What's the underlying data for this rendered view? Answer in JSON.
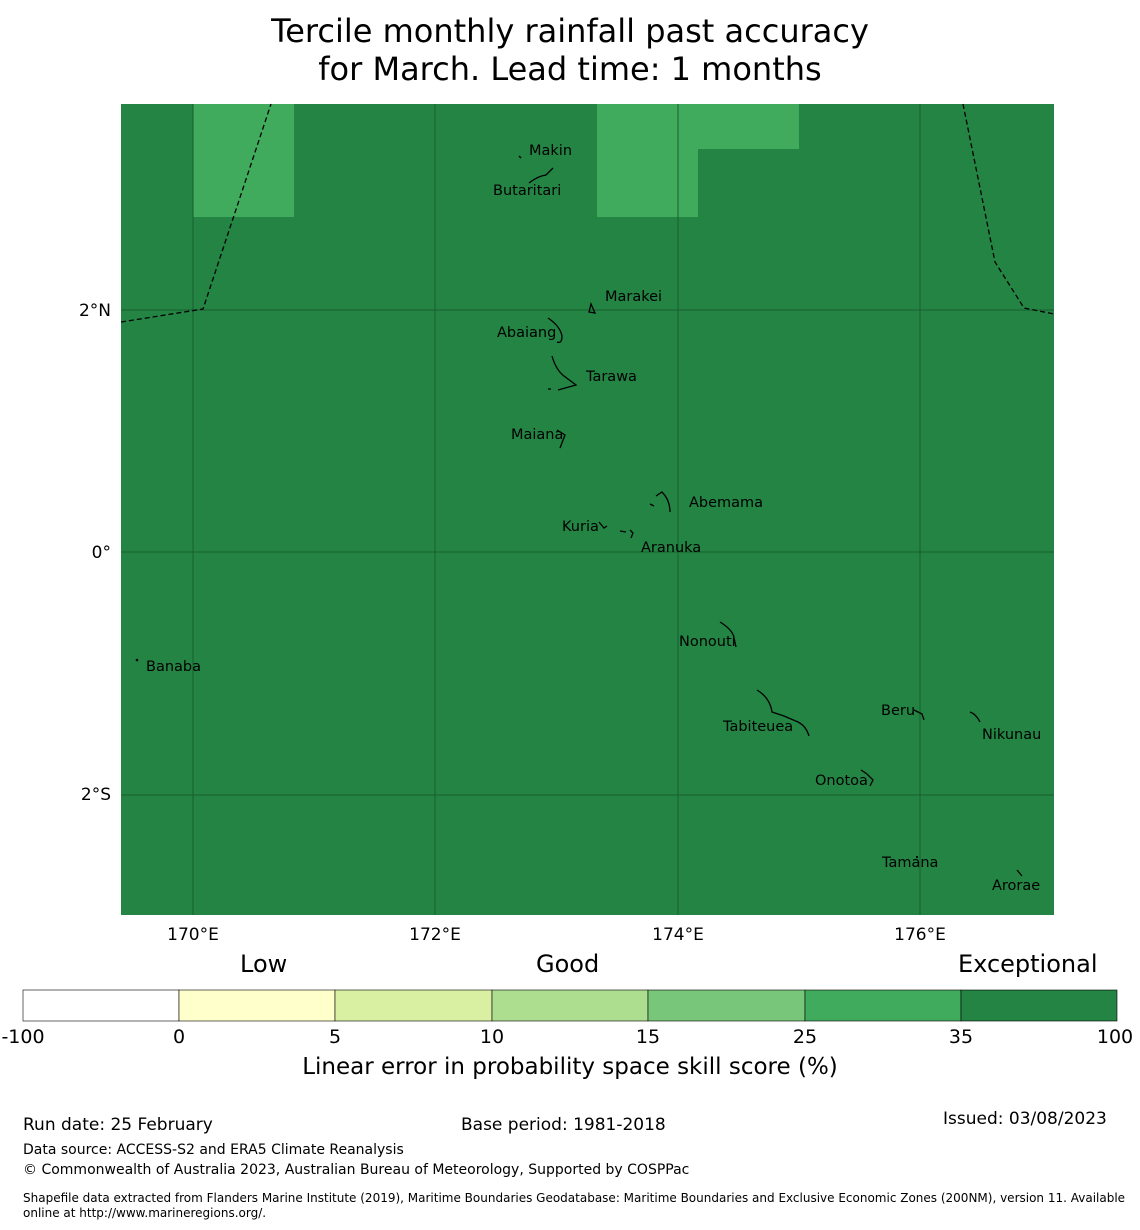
{
  "title": {
    "line1": "Tercile monthly rainfall past accuracy",
    "line2": "for March. Lead time: 1 months"
  },
  "colors": {
    "exceptional": "#238443",
    "range_25_35": "#41ab5d",
    "range_15_25": "#78c679",
    "range_10_15": "#addd8e",
    "range_5_10": "#d9f0a3",
    "range_0_5": "#ffffcc",
    "range_neg": "#ffffff"
  },
  "map": {
    "lon_ticks": [
      "170°E",
      "172°E",
      "174°E",
      "176°E"
    ],
    "lat_ticks": [
      "2°N",
      "0°",
      "2°S"
    ],
    "islands": [
      {
        "name": "Makin"
      },
      {
        "name": "Butaritari"
      },
      {
        "name": "Marakei"
      },
      {
        "name": "Abaiang"
      },
      {
        "name": "Tarawa"
      },
      {
        "name": "Maiana"
      },
      {
        "name": "Abemama"
      },
      {
        "name": "Kuria"
      },
      {
        "name": "Aranuka"
      },
      {
        "name": "Banaba"
      },
      {
        "name": "Nonouti"
      },
      {
        "name": "Beru"
      },
      {
        "name": "Tabiteuea"
      },
      {
        "name": "Nikunau"
      },
      {
        "name": "Onotoa"
      },
      {
        "name": "Tamana"
      },
      {
        "name": "Arorae"
      }
    ]
  },
  "colorbar": {
    "categories": {
      "low": "Low",
      "good": "Good",
      "exceptional": "Exceptional"
    },
    "ticks": [
      "-100",
      "0",
      "5",
      "10",
      "15",
      "25",
      "35",
      "100"
    ],
    "label": "Linear error in probability space skill score (%)"
  },
  "footer": {
    "run_date": "Run date: 25 February",
    "base_period": "Base period: 1981-2018",
    "issued": "Issued: 03/08/2023",
    "data_source": "Data source: ACCESS-S2 and ERA5 Climate Reanalysis",
    "copyright": "© Commonwealth of Australia 2023, Australian Bureau of Meteorology, Supported by COSPPac",
    "shapefile": "Shapefile data extracted from Flanders Marine Institute (2019), Maritime Boundaries Geodatabase: Maritime Boundaries and Exclusive Economic Zones (200NM), version 11. Available online at http://www.marineregions.org/."
  }
}
